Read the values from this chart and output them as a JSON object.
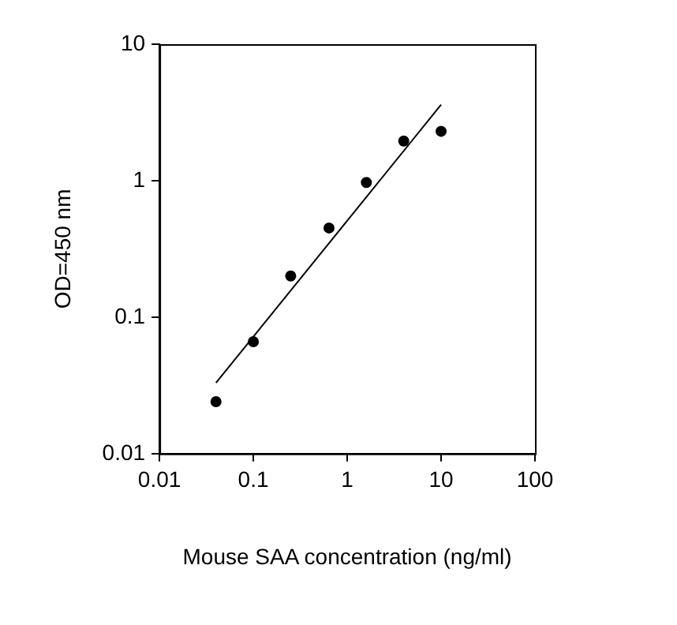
{
  "chart_data": {
    "type": "scatter",
    "xlabel": "Mouse SAA concentration (ng/ml)",
    "ylabel": "OD=450 nm",
    "log": "xy",
    "grid": false,
    "marker": "circle",
    "xlim": [
      0.01,
      100
    ],
    "xticks": [
      0.01,
      0.1,
      1,
      10,
      100
    ],
    "ylim": [
      0.01,
      10
    ],
    "yticks": [
      0.01,
      0.1,
      1,
      10
    ],
    "series": [
      {
        "color": "#000000",
        "x": [
          0.04,
          0.1,
          0.25,
          0.64,
          1.6,
          4,
          10
        ],
        "values": [
          0.024,
          0.066,
          0.2,
          0.45,
          0.97,
          1.95,
          2.3
        ]
      },
      {
        "type": "line",
        "color": "#000000",
        "marker": "none",
        "line_style": "solid",
        "x": [
          0.04,
          10
        ],
        "values": [
          0.033,
          3.6
        ]
      }
    ]
  }
}
